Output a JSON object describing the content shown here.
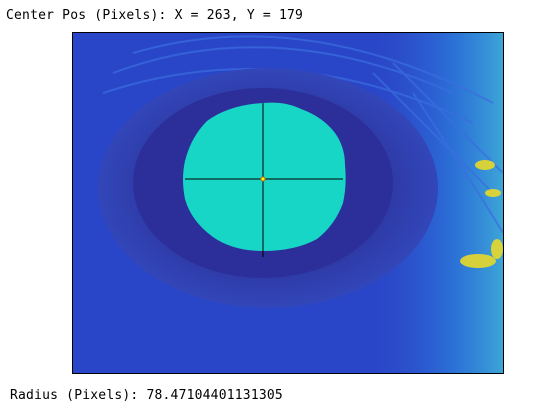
{
  "title": {
    "prefix": "Center Pos (Pixels):",
    "x_label": "X =",
    "x_value": "263",
    "y_label": "Y =",
    "y_value": "179"
  },
  "radius": {
    "label": "Radius (Pixels):",
    "value": "78.47104401131305"
  },
  "colors": {
    "pupil": "#18d6c6",
    "iris_dark": "#2c2f9a",
    "background_blue": "#2a46c8",
    "highlight_yellow": "#e8d92a",
    "crosshair": "#000000",
    "center_marker": "#ffff00"
  }
}
